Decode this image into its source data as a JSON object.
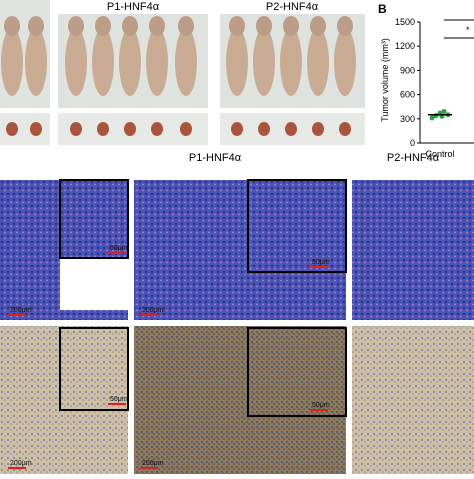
{
  "panel_a": {
    "labels": [
      "P1-HNF4α",
      "P2-HNF4α"
    ]
  },
  "panel_b": {
    "label": "B",
    "y_label": "Tumor volume (mm³)",
    "ylim": [
      0,
      1500
    ],
    "yticks": [
      0,
      300,
      600,
      900,
      1200,
      1500
    ],
    "category": "Control",
    "points": [
      310,
      340,
      370,
      390,
      350,
      330
    ],
    "mean": 350,
    "significance": [
      "*"
    ]
  },
  "histology": {
    "labels": [
      "P1-HNF4α",
      "P2-HNF4α"
    ],
    "scale_bars": [
      "200μm",
      "50μm",
      "200μm",
      "50μm",
      "200μm",
      "50μm",
      "200μm",
      "50μm"
    ]
  }
}
